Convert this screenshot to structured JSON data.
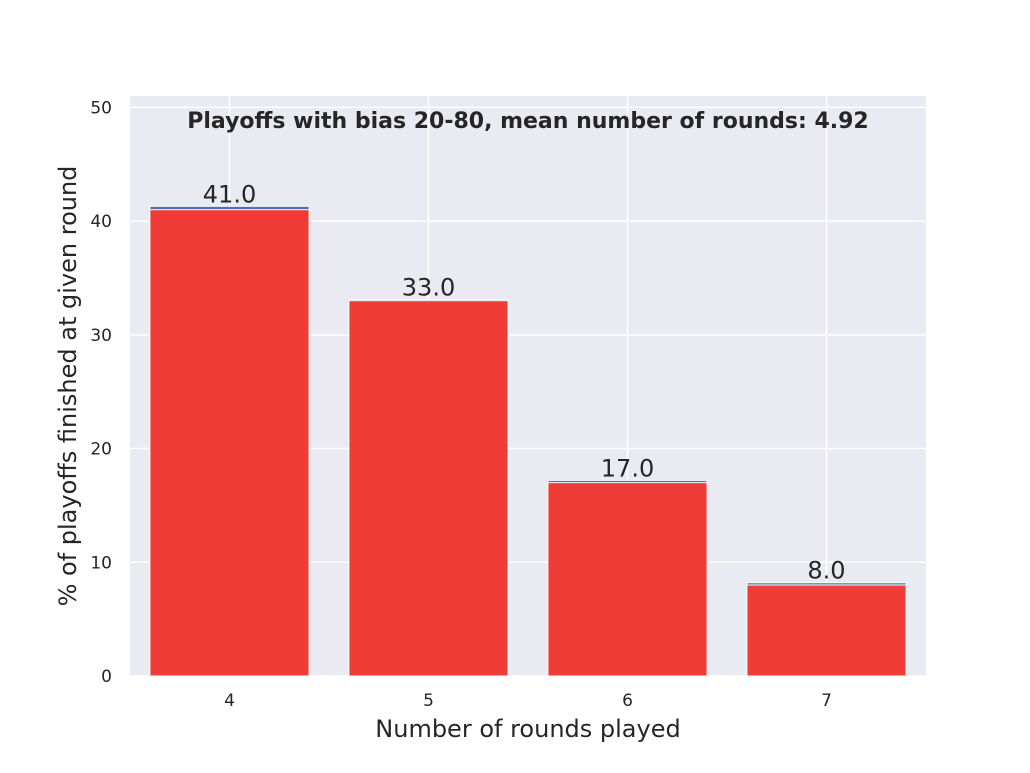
{
  "chart_data": {
    "type": "bar",
    "title": "Playoffs with bias 20-80, mean number of rounds: 4.92",
    "xlabel": "Number of rounds played",
    "ylabel": "% of playoffs finished at given round",
    "categories": [
      "4",
      "5",
      "6",
      "7"
    ],
    "series": [
      {
        "values": [
          41.3,
          33.1,
          17.2,
          8.2
        ],
        "color": "#4c72b0"
      },
      {
        "values": [
          41.0,
          33.0,
          17.0,
          8.0
        ],
        "color": "#f03c37"
      }
    ],
    "data_labels": [
      "41.0",
      "33.0",
      "17.0",
      "8.0"
    ],
    "ylim": [
      0,
      51
    ],
    "yticks": [
      0,
      10,
      20,
      30,
      40,
      50
    ],
    "grid": true,
    "background": "#eaeaf2",
    "grid_color": "#ffffff"
  }
}
